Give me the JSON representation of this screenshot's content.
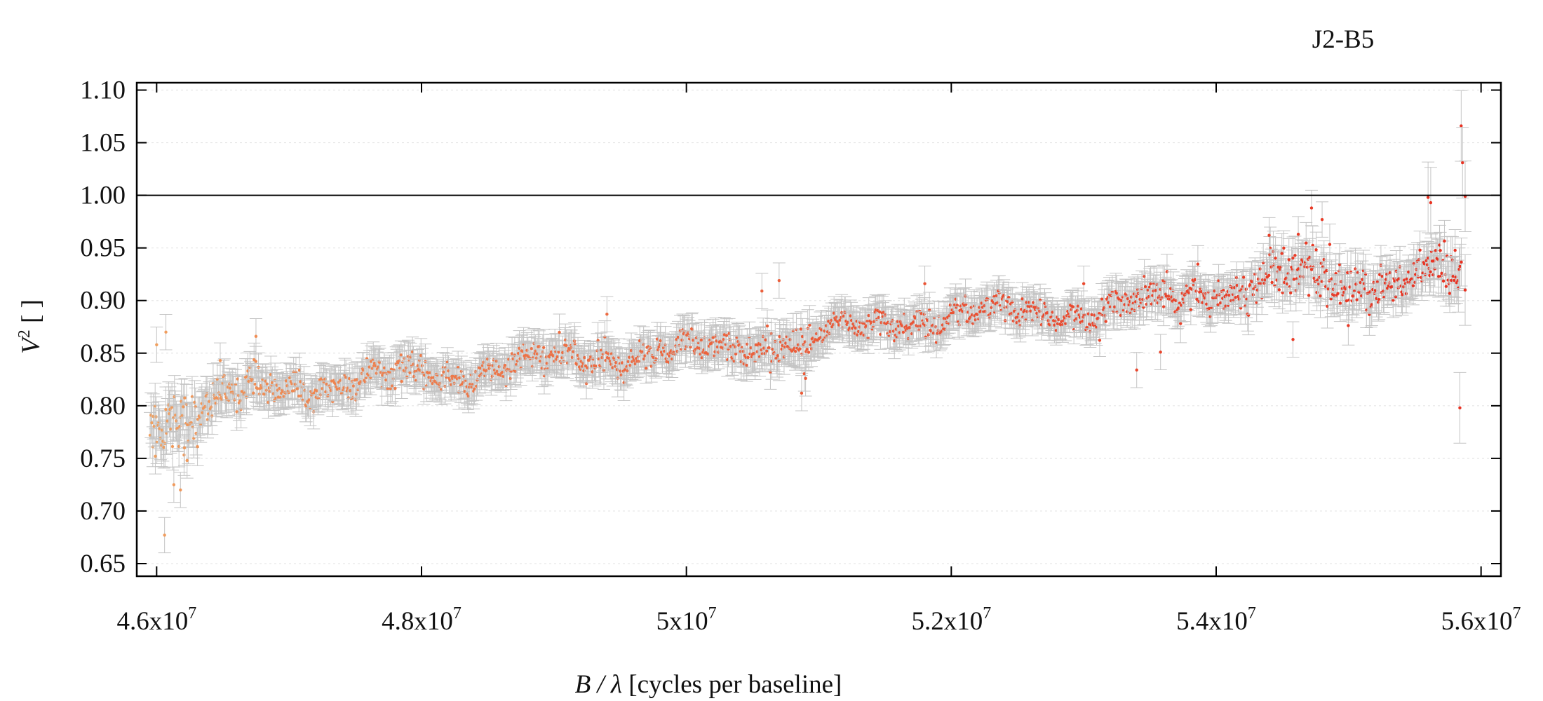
{
  "chart_data": {
    "type": "scatter",
    "title": "J2-B5",
    "xlabel_var": "B / λ",
    "xlabel_rest": " [cycles per baseline]",
    "ylabel_var": "V",
    "ylabel_sup": "2",
    "ylabel_rest": " [ ]",
    "xlim": [
      45850000,
      56150000
    ],
    "ylim": [
      0.638,
      1.107
    ],
    "x_ticks": [
      {
        "value": 46000000,
        "mant": "4.6x10",
        "exp": "7"
      },
      {
        "value": 48000000,
        "mant": "4.8x10",
        "exp": "7"
      },
      {
        "value": 50000000,
        "mant": "5x10",
        "exp": "7"
      },
      {
        "value": 52000000,
        "mant": "5.2x10",
        "exp": "7"
      },
      {
        "value": 54000000,
        "mant": "5.4x10",
        "exp": "7"
      },
      {
        "value": 56000000,
        "mant": "5.6x10",
        "exp": "7"
      }
    ],
    "y_ticks": [
      0.65,
      0.7,
      0.75,
      0.8,
      0.85,
      0.9,
      0.95,
      1.0,
      1.05,
      1.1
    ],
    "y_tick_labels": [
      "0.65",
      "0.70",
      "0.75",
      "0.80",
      "0.85",
      "0.90",
      "0.95",
      "1.00",
      "1.05",
      "1.10"
    ],
    "reference_line_y": 1.0,
    "grid": true,
    "colors": {
      "point_low": "#f0a060",
      "point_high": "#e83020",
      "errorbar": "#c4c4c4",
      "grid": "#e6e6e6",
      "axis": "#000000"
    },
    "series": [
      {
        "x": [
          45950000,
          46100000,
          46300000,
          46500000,
          46800000,
          47100000,
          47400000,
          47800000,
          48200000,
          48600000,
          49000000,
          49400000,
          49800000,
          50200000,
          50550000,
          50750000,
          50900000,
          51100000,
          51400000,
          51800000,
          52200000,
          52600000,
          53000000,
          53400000,
          53700000,
          53900000,
          54100000,
          54400000,
          54700000,
          55000000,
          55300000,
          55600000,
          55850000
        ],
        "y": [
          0.795,
          0.79,
          0.795,
          0.805,
          0.815,
          0.82,
          0.822,
          0.826,
          0.83,
          0.836,
          0.842,
          0.846,
          0.85,
          0.854,
          0.858,
          0.87,
          0.852,
          0.868,
          0.878,
          0.885,
          0.886,
          0.888,
          0.89,
          0.895,
          0.9,
          0.915,
          0.91,
          0.92,
          0.92,
          0.915,
          0.92,
          0.925,
          0.91
        ],
        "scatter": [
          0.025,
          0.03,
          0.022,
          0.015,
          0.013,
          0.012,
          0.012,
          0.012,
          0.012,
          0.012,
          0.014,
          0.014,
          0.013,
          0.013,
          0.016,
          0.016,
          0.018,
          0.013,
          0.012,
          0.011,
          0.011,
          0.011,
          0.013,
          0.014,
          0.016,
          0.013,
          0.012,
          0.02,
          0.022,
          0.022,
          0.02,
          0.018,
          0.03
        ],
        "count": 1500
      }
    ],
    "outliers": [
      {
        "x": 46000000,
        "y": 0.858
      },
      {
        "x": 46070000,
        "y": 0.87
      },
      {
        "x": 46060000,
        "y": 0.677
      },
      {
        "x": 46130000,
        "y": 0.725
      },
      {
        "x": 46180000,
        "y": 0.72
      },
      {
        "x": 46210000,
        "y": 0.76
      },
      {
        "x": 46230000,
        "y": 0.748
      },
      {
        "x": 45990000,
        "y": 0.752
      },
      {
        "x": 55850000,
        "y": 1.066
      },
      {
        "x": 55860000,
        "y": 1.031
      },
      {
        "x": 55880000,
        "y": 0.999
      },
      {
        "x": 55880000,
        "y": 0.91
      },
      {
        "x": 55840000,
        "y": 0.798
      },
      {
        "x": 55600000,
        "y": 0.998
      },
      {
        "x": 55620000,
        "y": 0.993
      },
      {
        "x": 54720000,
        "y": 0.988
      },
      {
        "x": 54800000,
        "y": 0.977
      },
      {
        "x": 54400000,
        "y": 0.962
      },
      {
        "x": 54620000,
        "y": 0.963
      },
      {
        "x": 54580000,
        "y": 0.863
      },
      {
        "x": 53580000,
        "y": 0.851
      },
      {
        "x": 53400000,
        "y": 0.834
      },
      {
        "x": 53000000,
        "y": 0.916
      },
      {
        "x": 50570000,
        "y": 0.909
      },
      {
        "x": 50700000,
        "y": 0.919
      },
      {
        "x": 50870000,
        "y": 0.812
      },
      {
        "x": 50900000,
        "y": 0.826
      },
      {
        "x": 46750000,
        "y": 0.866
      },
      {
        "x": 46480000,
        "y": 0.843
      },
      {
        "x": 49400000,
        "y": 0.887
      },
      {
        "x": 51800000,
        "y": 0.916
      }
    ]
  }
}
